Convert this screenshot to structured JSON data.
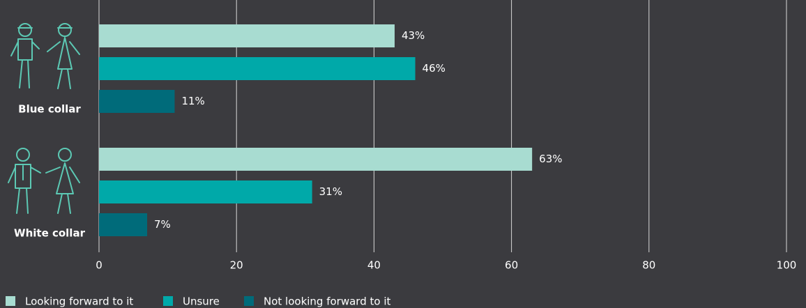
{
  "chart_data": {
    "type": "bar",
    "orientation": "horizontal",
    "categories": [
      "Blue collar",
      "White collar"
    ],
    "series": [
      {
        "name": "Looking forward to it",
        "color": "#a8dcd1",
        "values": [
          43,
          63
        ],
        "value_labels": [
          "43%",
          "63%"
        ]
      },
      {
        "name": "Unsure",
        "color": "#00a9a9",
        "values": [
          46,
          31
        ],
        "value_labels": [
          "46%",
          "31%"
        ]
      },
      {
        "name": "Not looking forward to it",
        "color": "#006b7a",
        "values": [
          11,
          7
        ],
        "value_labels": [
          "11%",
          "7%"
        ]
      }
    ],
    "xlim": [
      0,
      100
    ],
    "xticks": [
      0,
      20,
      40,
      60,
      80,
      100
    ],
    "grid": true,
    "legend": "bottom-left"
  }
}
